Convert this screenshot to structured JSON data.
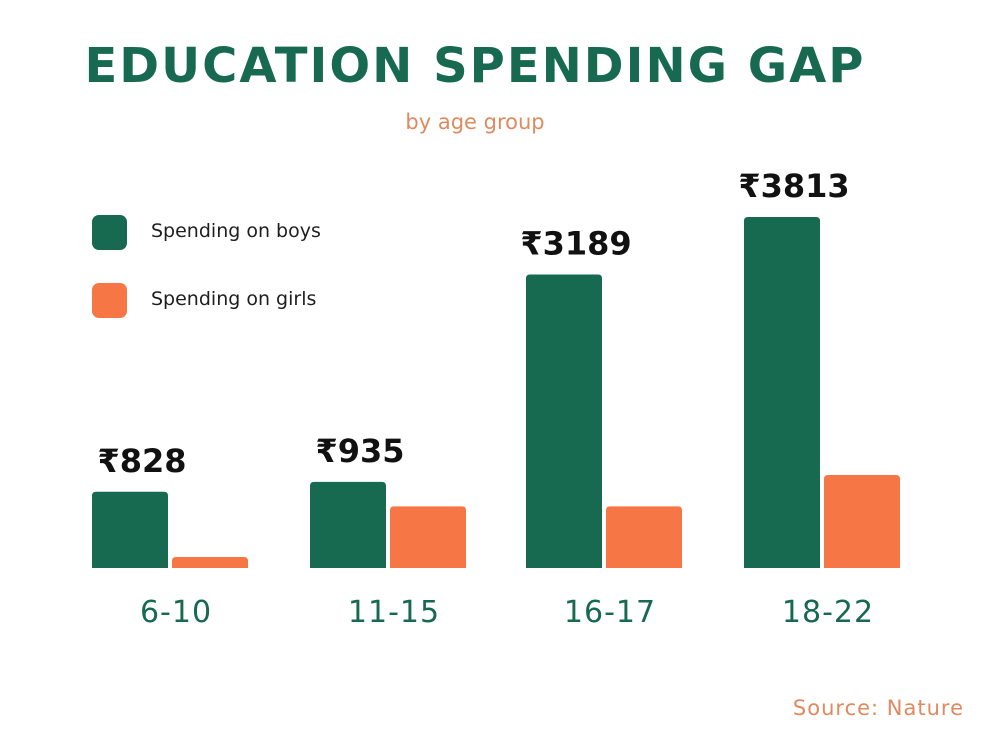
{
  "chart_data": {
    "type": "bar",
    "title": "EDUCATION SPENDING GAP",
    "subtitle": "by age group",
    "categories": [
      "6-10",
      "11-15",
      "16-17",
      "18-22"
    ],
    "series": [
      {
        "name": "Spending on boys",
        "color": "#176950",
        "values": [
          828,
          935,
          3189,
          3813
        ],
        "labels": [
          "₹828",
          "₹935",
          "₹3189",
          "₹3813"
        ]
      },
      {
        "name": "Spending on girls",
        "color": "#F77645",
        "values": [
          120,
          670,
          670,
          1010
        ]
      }
    ],
    "ylim": [
      0,
      3813
    ],
    "grid": false,
    "legend_position": "top-left",
    "source": "Source: Nature"
  },
  "colors": {
    "title": "#176950",
    "subtitle": "#E08A60",
    "category_labels": "#176950",
    "source": "#E08A60",
    "value_labels": "#111111"
  }
}
